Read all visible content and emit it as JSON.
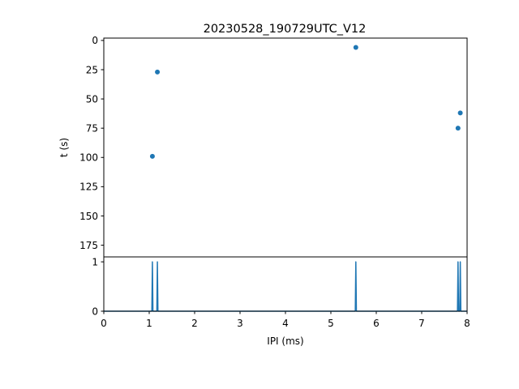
{
  "chart_data": {
    "title": "20230528_190729UTC_V12",
    "scatter_panel": {
      "type": "scatter",
      "ylabel": "t (s)",
      "ylim": [
        185,
        -2
      ],
      "y_inverted": true,
      "yticks": [
        0,
        25,
        50,
        75,
        100,
        125,
        150,
        175
      ],
      "points": [
        {
          "x": 1.18,
          "y": 27
        },
        {
          "x": 1.07,
          "y": 99
        },
        {
          "x": 5.55,
          "y": 6
        },
        {
          "x": 7.85,
          "y": 62
        },
        {
          "x": 7.8,
          "y": 75
        }
      ],
      "color": "#1f77b4"
    },
    "line_panel": {
      "type": "line",
      "xlabel": "IPI (ms)",
      "xlim": [
        0,
        8
      ],
      "ylim": [
        0,
        1.1
      ],
      "xticks": [
        0,
        1,
        2,
        3,
        4,
        5,
        6,
        7,
        8
      ],
      "yticks": [
        0,
        1
      ],
      "spikes": [
        1.07,
        1.18,
        5.55,
        7.8,
        7.85
      ],
      "spike_height": 1,
      "color": "#1f77b4"
    }
  }
}
